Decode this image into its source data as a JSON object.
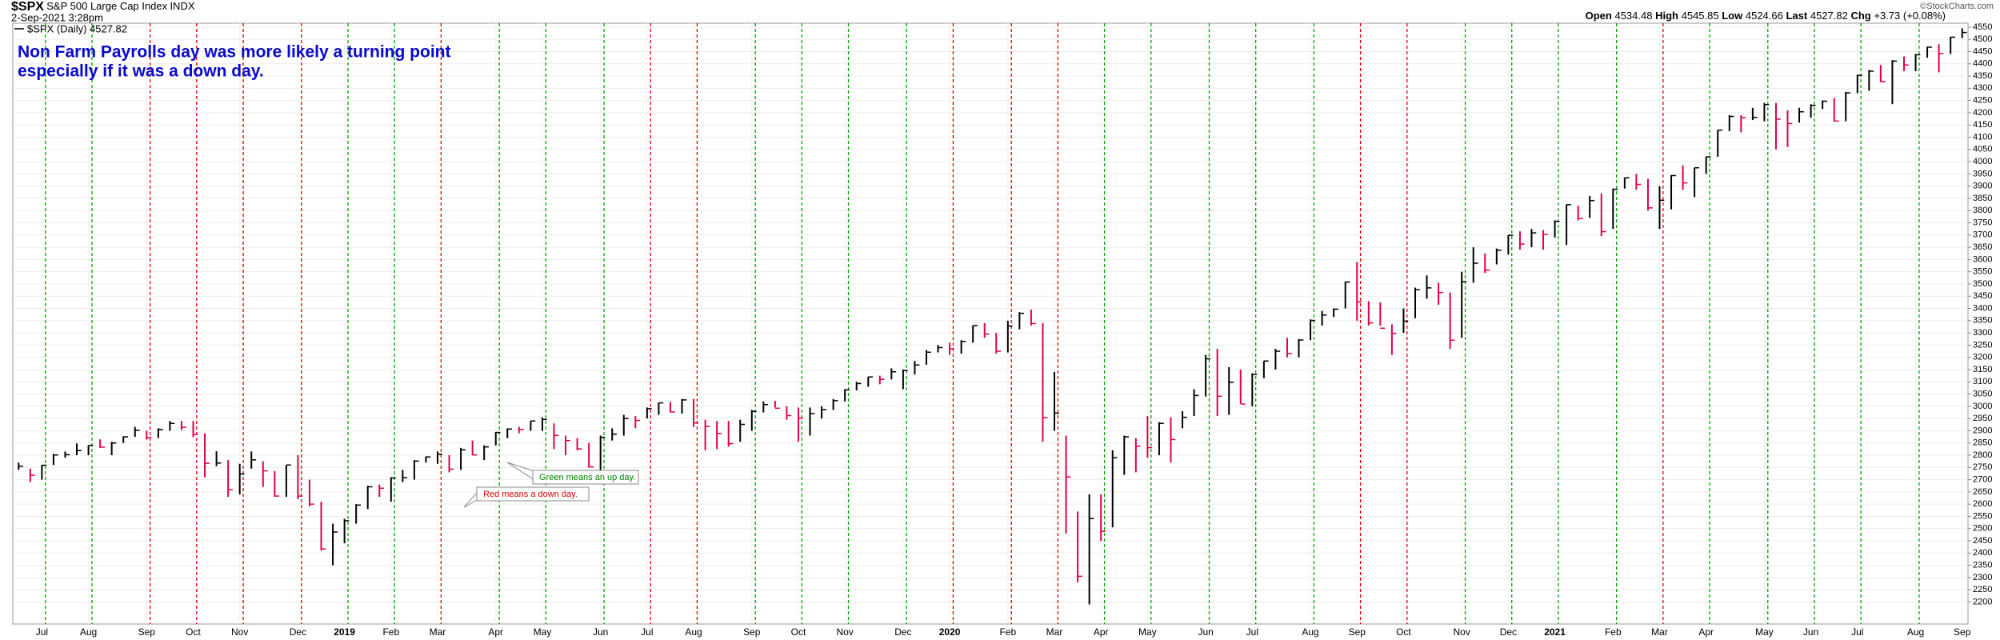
{
  "chart_data": {
    "type": "ohlc",
    "symbol": "$SPX",
    "title": "S&P 500 Large Cap Index",
    "exchange": "INDX",
    "timestamp": "2-Sep-2021 3:28pm",
    "legend_label": "$SPX (Daily) 4527.82",
    "watermark": "©StockCharts.com",
    "quote": [
      {
        "label": "Open",
        "value": 4534.48
      },
      {
        "label": "High",
        "value": 4545.85
      },
      {
        "label": "Low",
        "value": 4524.66
      },
      {
        "label": "Last",
        "value": 4527.82
      },
      {
        "label": "Chg",
        "value": "+3.73 (+0.08%)"
      }
    ],
    "annotation": [
      "Non Farm Payrolls day was more likely a turning point",
      "especially if it was a down day."
    ],
    "callouts": [
      {
        "text": "Green means an up day.",
        "color": "#008000"
      },
      {
        "text": "Red means a down day.",
        "color": "#e00000"
      }
    ],
    "up_color": "#000000",
    "down_color": "#e0004a",
    "grid": true,
    "categories": [
      null,
      null,
      "Jul",
      null,
      null,
      null,
      "Aug",
      null,
      null,
      null,
      null,
      "Sep",
      null,
      null,
      null,
      "Oct",
      null,
      null,
      null,
      "Nov",
      null,
      null,
      null,
      null,
      "Dec",
      null,
      null,
      null,
      "2019",
      null,
      null,
      null,
      "Feb",
      null,
      null,
      null,
      "Mar",
      null,
      null,
      null,
      null,
      "Apr",
      null,
      null,
      null,
      "May",
      null,
      null,
      null,
      null,
      "Jun",
      null,
      null,
      null,
      "Jul",
      null,
      null,
      null,
      "Aug",
      null,
      null,
      null,
      null,
      "Sep",
      null,
      null,
      null,
      "Oct",
      null,
      null,
      null,
      "Nov",
      null,
      null,
      null,
      null,
      "Dec",
      null,
      null,
      null,
      "2020",
      null,
      null,
      null,
      null,
      "Feb",
      null,
      null,
      null,
      "Mar",
      null,
      null,
      null,
      "Apr",
      null,
      null,
      null,
      "May",
      null,
      null,
      null,
      null,
      "Jun",
      null,
      null,
      null,
      "Jul",
      null,
      null,
      null,
      null,
      "Aug",
      null,
      null,
      null,
      "Sep",
      null,
      null,
      null,
      "Oct",
      null,
      null,
      null,
      null,
      "Nov",
      null,
      null,
      null,
      "Dec",
      null,
      null,
      null,
      "2021",
      null,
      null,
      null,
      null,
      "Feb",
      null,
      null,
      null,
      "Mar",
      null,
      null,
      null,
      "Apr",
      null,
      null,
      null,
      null,
      "May",
      null,
      null,
      null,
      "Jun",
      null,
      null,
      null,
      "Jul",
      null,
      null,
      null,
      null,
      "Aug",
      null,
      null,
      null,
      "Sep"
    ],
    "nfp_colors": [
      "#00a000",
      "#00a000",
      "#e00000",
      "#e00000",
      "#e00000",
      "#e00000",
      "#00a000",
      "#00a000",
      "#e00000",
      "#00a000",
      "#00a000",
      "#00a000",
      "#e00000",
      "#e00000",
      "#00a000",
      "#00a000",
      "#00a000",
      "#00a000",
      "#e00000",
      "#e00000",
      "#e00000",
      "#00a000",
      "#00a000",
      "#00a000",
      "#00a000",
      "#00a000",
      "#e00000",
      "#e00000",
      "#00a000",
      "#00a000",
      "#00a000",
      "#00a000",
      "#e00000",
      "#00a000",
      "#00a000",
      "#00a000",
      "#00a000",
      "#00a000"
    ],
    "high": [
      2770,
      2745,
      2760,
      2805,
      2815,
      2848,
      2840,
      2865,
      2855,
      2877,
      2916,
      2900,
      2910,
      2940,
      2940,
      2940,
      2890,
      2816,
      2780,
      2765,
      2815,
      2775,
      2735,
      2760,
      2800,
      2700,
      2610,
      2520,
      2540,
      2600,
      2675,
      2680,
      2710,
      2740,
      2780,
      2795,
      2815,
      2800,
      2830,
      2860,
      2840,
      2895,
      2910,
      2916,
      2940,
      2955,
      2930,
      2880,
      2870,
      2850,
      2880,
      2910,
      2965,
      2960,
      2995,
      3015,
      3018,
      3030,
      3030,
      2945,
      2940,
      2940,
      2945,
      2985,
      3020,
      3022,
      3000,
      2995,
      2995,
      3000,
      3030,
      3070,
      3100,
      3120,
      3125,
      3155,
      3150,
      3185,
      3230,
      3250,
      3260,
      3270,
      3330,
      3340,
      3300,
      3350,
      3385,
      3395,
      3340,
      3140,
      2880,
      2570,
      2640,
      2640,
      2820,
      2880,
      2870,
      2960,
      2935,
      2955,
      2980,
      3070,
      3210,
      3235,
      3160,
      3150,
      3135,
      3185,
      3235,
      3280,
      3275,
      3355,
      3390,
      3400,
      3510,
      3590,
      3430,
      3425,
      3335,
      3400,
      3485,
      3535,
      3505,
      3465,
      3550,
      3650,
      3625,
      3645,
      3700,
      3715,
      3725,
      3720,
      3760,
      3825,
      3820,
      3860,
      3870,
      3890,
      3935,
      3950,
      3930,
      3900,
      3945,
      3985,
      3975,
      4020,
      4130,
      4190,
      4190,
      4220,
      4240,
      4240,
      4210,
      4220,
      4235,
      4250,
      4260,
      4285,
      4355,
      4375,
      4395,
      4415,
      4430,
      4440,
      4470,
      4480,
      4510,
      4545
    ],
    "low": [
      2740,
      2690,
      2700,
      2760,
      2790,
      2800,
      2800,
      2830,
      2800,
      2850,
      2875,
      2864,
      2870,
      2900,
      2903,
      2874,
      2710,
      2755,
      2630,
      2640,
      2745,
      2670,
      2630,
      2630,
      2620,
      2590,
      2410,
      2350,
      2440,
      2520,
      2580,
      2630,
      2610,
      2690,
      2700,
      2770,
      2765,
      2730,
      2740,
      2800,
      2780,
      2840,
      2870,
      2890,
      2900,
      2900,
      2825,
      2800,
      2820,
      2750,
      2730,
      2860,
      2880,
      2910,
      2950,
      2965,
      2975,
      2970,
      2915,
      2820,
      2825,
      2835,
      2855,
      2900,
      2975,
      2995,
      2945,
      2855,
      2880,
      2950,
      2985,
      3020,
      3065,
      3080,
      3090,
      3110,
      3070,
      3130,
      3170,
      3220,
      3210,
      3215,
      3260,
      3280,
      3215,
      3220,
      3315,
      3330,
      2855,
      2900,
      2480,
      2280,
      2190,
      2450,
      2505,
      2720,
      2730,
      2790,
      2800,
      2770,
      2910,
      2960,
      3040,
      2960,
      2965,
      3010,
      3000,
      3115,
      3150,
      3200,
      3200,
      3270,
      3330,
      3365,
      3400,
      3350,
      3330,
      3330,
      3210,
      3300,
      3360,
      3440,
      3415,
      3235,
      3280,
      3505,
      3545,
      3580,
      3620,
      3640,
      3650,
      3640,
      3690,
      3660,
      3760,
      3770,
      3695,
      3725,
      3890,
      3885,
      3800,
      3725,
      3805,
      3885,
      3855,
      3950,
      4020,
      4125,
      4120,
      4170,
      4165,
      4050,
      4060,
      4160,
      4180,
      4215,
      4165,
      4165,
      4280,
      4290,
      4325,
      4235,
      4370,
      4370,
      4425,
      4365,
      4440,
      4505
    ],
    "close": [
      2755,
      2718,
      2759,
      2801,
      2802,
      2819,
      2840,
      2833,
      2850,
      2875,
      2902,
      2872,
      2905,
      2930,
      2914,
      2885,
      2767,
      2768,
      2659,
      2723,
      2781,
      2736,
      2633,
      2760,
      2633,
      2600,
      2417,
      2486,
      2532,
      2596,
      2671,
      2665,
      2707,
      2708,
      2776,
      2793,
      2804,
      2743,
      2822,
      2801,
      2834,
      2893,
      2907,
      2905,
      2940,
      2946,
      2881,
      2860,
      2826,
      2752,
      2873,
      2886,
      2950,
      2942,
      2990,
      3014,
      2977,
      3026,
      2932,
      2918,
      2889,
      2847,
      2926,
      2979,
      3007,
      2992,
      2962,
      2952,
      2970,
      2986,
      3023,
      3067,
      3093,
      3120,
      3110,
      3141,
      3146,
      3169,
      3221,
      3240,
      3235,
      3265,
      3330,
      3295,
      3225,
      3328,
      3380,
      3338,
      2954,
      2972,
      2711,
      2305,
      2541,
      2489,
      2790,
      2875,
      2837,
      2831,
      2930,
      2864,
      2955,
      3044,
      3194,
      3041,
      3098,
      3009,
      3130,
      3185,
      3225,
      3216,
      3271,
      3351,
      3373,
      3397,
      3508,
      3427,
      3341,
      3319,
      3298,
      3348,
      3477,
      3484,
      3465,
      3270,
      3509,
      3585,
      3557,
      3638,
      3699,
      3663,
      3709,
      3703,
      3756,
      3824,
      3768,
      3841,
      3714,
      3887,
      3934,
      3907,
      3811,
      3842,
      3943,
      3913,
      3975,
      4020,
      4129,
      4185,
      4180,
      4181,
      4233,
      4174,
      4156,
      4204,
      4230,
      4247,
      4166,
      4281,
      4353,
      4370,
      4327,
      4411,
      4395,
      4437,
      4468,
      4442,
      4509,
      4528
    ],
    "ylim": [
      2110,
      4566
    ],
    "yticks": [
      2200,
      2250,
      2300,
      2350,
      2400,
      2450,
      2500,
      2550,
      2600,
      2650,
      2700,
      2750,
      2800,
      2850,
      2900,
      2950,
      3000,
      3050,
      3100,
      3150,
      3200,
      3250,
      3300,
      3350,
      3400,
      3450,
      3500,
      3550,
      3600,
      3650,
      3700,
      3750,
      3800,
      3850,
      3900,
      3950,
      4000,
      4050,
      4100,
      4150,
      4200,
      4250,
      4300,
      4350,
      4400,
      4450,
      4500,
      4550
    ]
  }
}
